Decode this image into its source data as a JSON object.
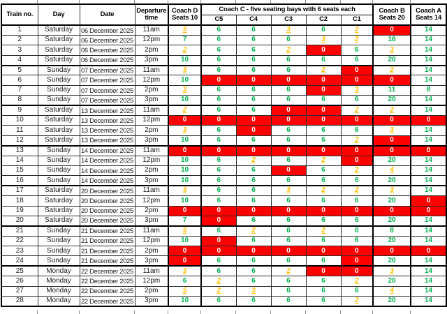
{
  "table": {
    "headers": {
      "train_no": "Train no.",
      "day": "Day",
      "date": "Date",
      "departure_time": "Departure time",
      "coach_d": "Coach D Seats 10",
      "coach_c_group": "Coach C - five seating bays with 6 seats each",
      "bays": [
        "C5",
        "C4",
        "C3",
        "C2",
        "C1"
      ],
      "coach_b": "Coach B Seats 20",
      "coach_a": "Coach A Seats 14"
    },
    "status_colors": {
      "available": "#00B050",
      "limited": "#FFC000",
      "sold_out_background": "#FF0000",
      "sold_out_text": "#FFFFFF"
    },
    "seat_columns_order": [
      "Coach D",
      "C5",
      "C4",
      "C3",
      "C2",
      "C1",
      "Coach B",
      "Coach A"
    ],
    "rows": [
      {
        "train": "1",
        "day": "Saturday",
        "date": "06 December 2025",
        "time": "11am",
        "seats": [
          [
            "5",
            "low"
          ],
          [
            "6",
            "ok"
          ],
          [
            "6",
            "ok"
          ],
          [
            "3",
            "low"
          ],
          [
            "6",
            "ok"
          ],
          [
            "2",
            "low"
          ],
          [
            "0",
            "full"
          ],
          [
            "14",
            "ok"
          ]
        ]
      },
      {
        "train": "2",
        "day": "Saturday",
        "date": "06 December 2025",
        "time": "12pm",
        "seats": [
          [
            "7",
            "ok"
          ],
          [
            "6",
            "ok"
          ],
          [
            "6",
            "ok"
          ],
          [
            "6",
            "ok"
          ],
          [
            "3",
            "low"
          ],
          [
            "2",
            "low"
          ],
          [
            "16",
            "ok"
          ],
          [
            "14",
            "ok"
          ]
        ]
      },
      {
        "train": "3",
        "day": "Saturday",
        "date": "06 December 2025",
        "time": "2pm",
        "seats": [
          [
            "2",
            "low"
          ],
          [
            "6",
            "ok"
          ],
          [
            "6",
            "ok"
          ],
          [
            "2",
            "low"
          ],
          [
            "0",
            "full"
          ],
          [
            "6",
            "ok"
          ],
          [
            "3",
            "low"
          ],
          [
            "14",
            "ok"
          ]
        ]
      },
      {
        "train": "4",
        "day": "Saturday",
        "date": "06 December 2025",
        "time": "3pm",
        "seats": [
          [
            "10",
            "ok"
          ],
          [
            "6",
            "ok"
          ],
          [
            "6",
            "ok"
          ],
          [
            "6",
            "ok"
          ],
          [
            "6",
            "ok"
          ],
          [
            "6",
            "ok"
          ],
          [
            "20",
            "ok"
          ],
          [
            "14",
            "ok"
          ]
        ]
      },
      {
        "train": "5",
        "day": "Sunday",
        "date": "07 December 2025",
        "time": "11am",
        "seats": [
          [
            "3",
            "low"
          ],
          [
            "6",
            "ok"
          ],
          [
            "6",
            "ok"
          ],
          [
            "6",
            "ok"
          ],
          [
            "2",
            "low"
          ],
          [
            "0",
            "full"
          ],
          [
            "2",
            "low"
          ],
          [
            "14",
            "ok"
          ]
        ]
      },
      {
        "train": "6",
        "day": "Sunday",
        "date": "07 December 2025",
        "time": "12pm",
        "seats": [
          [
            "10",
            "ok"
          ],
          [
            "0",
            "full"
          ],
          [
            "0",
            "full"
          ],
          [
            "0",
            "full"
          ],
          [
            "0",
            "full"
          ],
          [
            "0",
            "full"
          ],
          [
            "0",
            "full"
          ],
          [
            "14",
            "ok"
          ]
        ]
      },
      {
        "train": "7",
        "day": "Sunday",
        "date": "07 December 2025",
        "time": "2pm",
        "seats": [
          [
            "3",
            "low"
          ],
          [
            "6",
            "ok"
          ],
          [
            "6",
            "ok"
          ],
          [
            "6",
            "ok"
          ],
          [
            "0",
            "full"
          ],
          [
            "3",
            "low"
          ],
          [
            "11",
            "ok"
          ],
          [
            "8",
            "ok"
          ]
        ]
      },
      {
        "train": "8",
        "day": "Sunday",
        "date": "07 December 2025",
        "time": "3pm",
        "seats": [
          [
            "10",
            "ok"
          ],
          [
            "6",
            "ok"
          ],
          [
            "6",
            "ok"
          ],
          [
            "6",
            "ok"
          ],
          [
            "6",
            "ok"
          ],
          [
            "6",
            "ok"
          ],
          [
            "20",
            "ok"
          ],
          [
            "14",
            "ok"
          ]
        ]
      },
      {
        "train": "9",
        "day": "Saturday",
        "date": "13 December 2025",
        "time": "11am",
        "seats": [
          [
            "2",
            "low"
          ],
          [
            "6",
            "ok"
          ],
          [
            "6",
            "ok"
          ],
          [
            "0",
            "full"
          ],
          [
            "0",
            "full"
          ],
          [
            "2",
            "low"
          ],
          [
            "2",
            "low"
          ],
          [
            "14",
            "ok"
          ]
        ]
      },
      {
        "train": "10",
        "day": "Saturday",
        "date": "13 December 2025",
        "time": "12pm",
        "seats": [
          [
            "0",
            "full"
          ],
          [
            "0",
            "full"
          ],
          [
            "0",
            "full"
          ],
          [
            "0",
            "full"
          ],
          [
            "0",
            "full"
          ],
          [
            "0",
            "full"
          ],
          [
            "0",
            "full"
          ],
          [
            "0",
            "full"
          ]
        ]
      },
      {
        "train": "11",
        "day": "Saturday",
        "date": "13 December 2025",
        "time": "2pm",
        "seats": [
          [
            "3",
            "low"
          ],
          [
            "6",
            "ok"
          ],
          [
            "0",
            "full"
          ],
          [
            "6",
            "ok"
          ],
          [
            "6",
            "ok"
          ],
          [
            "6",
            "ok"
          ],
          [
            "3",
            "low"
          ],
          [
            "14",
            "ok"
          ]
        ]
      },
      {
        "train": "12",
        "day": "Saturday",
        "date": "13 December 2025",
        "time": "3pm",
        "seats": [
          [
            "10",
            "ok"
          ],
          [
            "6",
            "ok"
          ],
          [
            "6",
            "ok"
          ],
          [
            "6",
            "ok"
          ],
          [
            "6",
            "ok"
          ],
          [
            "2",
            "low"
          ],
          [
            "0",
            "full"
          ],
          [
            "14",
            "ok"
          ]
        ]
      },
      {
        "train": "13",
        "day": "Sunday",
        "date": "14 December 2025",
        "time": "11am",
        "seats": [
          [
            "0",
            "full"
          ],
          [
            "0",
            "full"
          ],
          [
            "0",
            "full"
          ],
          [
            "0",
            "full"
          ],
          [
            "0",
            "full"
          ],
          [
            "0",
            "full"
          ],
          [
            "0",
            "full"
          ],
          [
            "0",
            "full"
          ]
        ]
      },
      {
        "train": "14",
        "day": "Sunday",
        "date": "14 December 2025",
        "time": "12pm",
        "seats": [
          [
            "10",
            "ok"
          ],
          [
            "6",
            "ok"
          ],
          [
            "2",
            "low"
          ],
          [
            "6",
            "ok"
          ],
          [
            "2",
            "low"
          ],
          [
            "0",
            "full"
          ],
          [
            "20",
            "ok"
          ],
          [
            "14",
            "ok"
          ]
        ]
      },
      {
        "train": "15",
        "day": "Sunday",
        "date": "14 December 2025",
        "time": "2pm",
        "seats": [
          [
            "10",
            "ok"
          ],
          [
            "6",
            "ok"
          ],
          [
            "6",
            "ok"
          ],
          [
            "0",
            "full"
          ],
          [
            "6",
            "ok"
          ],
          [
            "2",
            "low"
          ],
          [
            "4",
            "low"
          ],
          [
            "14",
            "ok"
          ]
        ]
      },
      {
        "train": "16",
        "day": "Sunday",
        "date": "14 December 2025",
        "time": "3pm",
        "seats": [
          [
            "10",
            "ok"
          ],
          [
            "6",
            "ok"
          ],
          [
            "6",
            "ok"
          ],
          [
            "6",
            "ok"
          ],
          [
            "6",
            "ok"
          ],
          [
            "6",
            "ok"
          ],
          [
            "20",
            "ok"
          ],
          [
            "14",
            "ok"
          ]
        ]
      },
      {
        "train": "17",
        "day": "Saturday",
        "date": "20 December 2025",
        "time": "11am",
        "seats": [
          [
            "3",
            "low"
          ],
          [
            "6",
            "ok"
          ],
          [
            "6",
            "ok"
          ],
          [
            "3",
            "low"
          ],
          [
            "2",
            "low"
          ],
          [
            "2",
            "low"
          ],
          [
            "3",
            "low"
          ],
          [
            "14",
            "ok"
          ]
        ]
      },
      {
        "train": "18",
        "day": "Saturday",
        "date": "20 December 2025",
        "time": "12pm",
        "seats": [
          [
            "10",
            "ok"
          ],
          [
            "6",
            "ok"
          ],
          [
            "6",
            "ok"
          ],
          [
            "6",
            "ok"
          ],
          [
            "6",
            "ok"
          ],
          [
            "6",
            "ok"
          ],
          [
            "20",
            "ok"
          ],
          [
            "0",
            "full"
          ]
        ]
      },
      {
        "train": "19",
        "day": "Saturday",
        "date": "20 December 2025",
        "time": "2pm",
        "seats": [
          [
            "0",
            "full"
          ],
          [
            "0",
            "full"
          ],
          [
            "0",
            "full"
          ],
          [
            "0",
            "full"
          ],
          [
            "0",
            "full"
          ],
          [
            "0",
            "full"
          ],
          [
            "0",
            "full"
          ],
          [
            "0",
            "full"
          ]
        ]
      },
      {
        "train": "20",
        "day": "Saturday",
        "date": "20 December 2025",
        "time": "3pm",
        "seats": [
          [
            "7",
            "ok"
          ],
          [
            "0",
            "full"
          ],
          [
            "6",
            "ok"
          ],
          [
            "6",
            "ok"
          ],
          [
            "6",
            "ok"
          ],
          [
            "6",
            "ok"
          ],
          [
            "20",
            "ok"
          ],
          [
            "14",
            "ok"
          ]
        ]
      },
      {
        "train": "21",
        "day": "Sunday",
        "date": "21 December 2025",
        "time": "11am",
        "seats": [
          [
            "5",
            "low"
          ],
          [
            "6",
            "ok"
          ],
          [
            "2",
            "low"
          ],
          [
            "6",
            "ok"
          ],
          [
            "2",
            "low"
          ],
          [
            "6",
            "ok"
          ],
          [
            "8",
            "ok"
          ],
          [
            "14",
            "ok"
          ]
        ]
      },
      {
        "train": "22",
        "day": "Sunday",
        "date": "21 December 2025",
        "time": "12pm",
        "seats": [
          [
            "10",
            "ok"
          ],
          [
            "0",
            "full"
          ],
          [
            "6",
            "ok"
          ],
          [
            "6",
            "ok"
          ],
          [
            "6",
            "ok"
          ],
          [
            "6",
            "ok"
          ],
          [
            "20",
            "ok"
          ],
          [
            "14",
            "ok"
          ]
        ]
      },
      {
        "train": "23",
        "day": "Sunday",
        "date": "21 December 2025",
        "time": "2pm",
        "seats": [
          [
            "0",
            "full"
          ],
          [
            "0",
            "full"
          ],
          [
            "0",
            "full"
          ],
          [
            "0",
            "full"
          ],
          [
            "0",
            "full"
          ],
          [
            "0",
            "full"
          ],
          [
            "0",
            "full"
          ],
          [
            "0",
            "full"
          ]
        ]
      },
      {
        "train": "24",
        "day": "Sunday",
        "date": "21 December 2025",
        "time": "3pm",
        "seats": [
          [
            "0",
            "full"
          ],
          [
            "6",
            "ok"
          ],
          [
            "6",
            "ok"
          ],
          [
            "6",
            "ok"
          ],
          [
            "6",
            "ok"
          ],
          [
            "0",
            "full"
          ],
          [
            "20",
            "ok"
          ],
          [
            "14",
            "ok"
          ]
        ]
      },
      {
        "train": "25",
        "day": "Monday",
        "date": "22 December 2025",
        "time": "11am",
        "seats": [
          [
            "3",
            "low"
          ],
          [
            "6",
            "ok"
          ],
          [
            "6",
            "ok"
          ],
          [
            "2",
            "low"
          ],
          [
            "0",
            "full"
          ],
          [
            "0",
            "full"
          ],
          [
            "3",
            "low"
          ],
          [
            "14",
            "ok"
          ]
        ]
      },
      {
        "train": "26",
        "day": "Monday",
        "date": "22 December 2025",
        "time": "12pm",
        "seats": [
          [
            "6",
            "ok"
          ],
          [
            "2",
            "low"
          ],
          [
            "6",
            "ok"
          ],
          [
            "6",
            "ok"
          ],
          [
            "6",
            "ok"
          ],
          [
            "2",
            "low"
          ],
          [
            "20",
            "ok"
          ],
          [
            "14",
            "ok"
          ]
        ]
      },
      {
        "train": "27",
        "day": "Monday",
        "date": "22 December 2025",
        "time": "2pm",
        "seats": [
          [
            "5",
            "low"
          ],
          [
            "2",
            "low"
          ],
          [
            "3",
            "low"
          ],
          [
            "6",
            "ok"
          ],
          [
            "6",
            "ok"
          ],
          [
            "6",
            "ok"
          ],
          [
            "4",
            "low"
          ],
          [
            "14",
            "ok"
          ]
        ]
      },
      {
        "train": "28",
        "day": "Monday",
        "date": "22 December 2025",
        "time": "3pm",
        "seats": [
          [
            "10",
            "ok"
          ],
          [
            "6",
            "ok"
          ],
          [
            "6",
            "ok"
          ],
          [
            "6",
            "ok"
          ],
          [
            "6",
            "ok"
          ],
          [
            "2",
            "low"
          ],
          [
            "20",
            "ok"
          ],
          [
            "14",
            "ok"
          ]
        ]
      }
    ]
  }
}
